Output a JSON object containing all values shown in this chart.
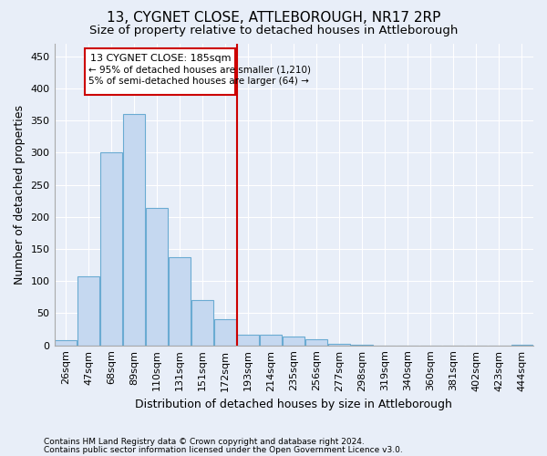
{
  "title": "13, CYGNET CLOSE, ATTLEBOROUGH, NR17 2RP",
  "subtitle": "Size of property relative to detached houses in Attleborough",
  "xlabel": "Distribution of detached houses by size in Attleborough",
  "ylabel": "Number of detached properties",
  "footnote1": "Contains HM Land Registry data © Crown copyright and database right 2024.",
  "footnote2": "Contains public sector information licensed under the Open Government Licence v3.0.",
  "annotation_title": "13 CYGNET CLOSE: 185sqm",
  "annotation_line1": "← 95% of detached houses are smaller (1,210)",
  "annotation_line2": "5% of semi-detached houses are larger (64) →",
  "bar_color": "#c5d8f0",
  "bar_edge_color": "#6aabd2",
  "vline_color": "#cc0000",
  "vline_x_index": 7.5,
  "categories": [
    "26sqm",
    "47sqm",
    "68sqm",
    "89sqm",
    "110sqm",
    "131sqm",
    "151sqm",
    "172sqm",
    "193sqm",
    "214sqm",
    "235sqm",
    "256sqm",
    "277sqm",
    "298sqm",
    "319sqm",
    "340sqm",
    "360sqm",
    "381sqm",
    "402sqm",
    "423sqm",
    "444sqm"
  ],
  "values": [
    8,
    108,
    301,
    360,
    214,
    137,
    70,
    40,
    16,
    16,
    14,
    10,
    3,
    1,
    0,
    0,
    0,
    0,
    0,
    0,
    1
  ],
  "ylim": [
    0,
    470
  ],
  "yticks": [
    0,
    50,
    100,
    150,
    200,
    250,
    300,
    350,
    400,
    450
  ],
  "background_color": "#e8eef8",
  "plot_bg_color": "#e8eef8",
  "grid_color": "#ffffff",
  "title_fontsize": 11,
  "subtitle_fontsize": 9.5,
  "axis_label_fontsize": 9,
  "tick_fontsize": 8,
  "footnote_fontsize": 6.5
}
